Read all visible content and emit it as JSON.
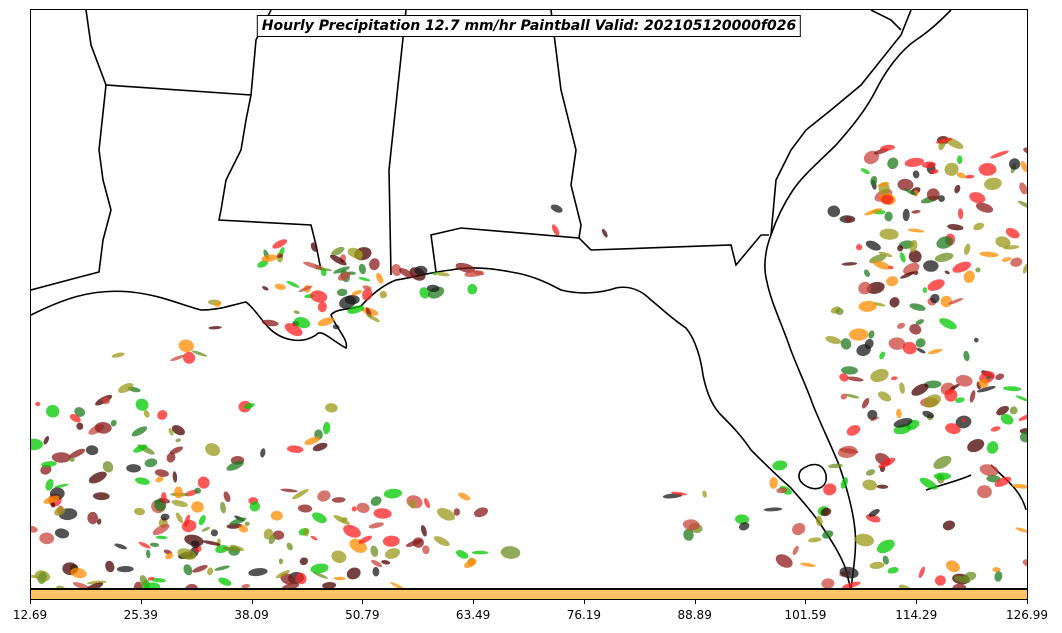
{
  "title": "Hourly Precipitation 12.7 mm/hr Paintball Valid: 202105120000f026",
  "colorbar": {
    "fill_color": "#ffc266",
    "ticks": [
      "12.69",
      "25.39",
      "38.09",
      "50.79",
      "63.49",
      "76.19",
      "88.89",
      "101.59",
      "114.29",
      "126.99"
    ]
  },
  "member_colors": [
    "#8b1a1a",
    "#ff8c00",
    "#00c800",
    "#9a9a1a",
    "#1a1a1a",
    "#1e7a1e",
    "#c8463c",
    "#ff2020",
    "#4a0000",
    "#6b8e23"
  ]
}
